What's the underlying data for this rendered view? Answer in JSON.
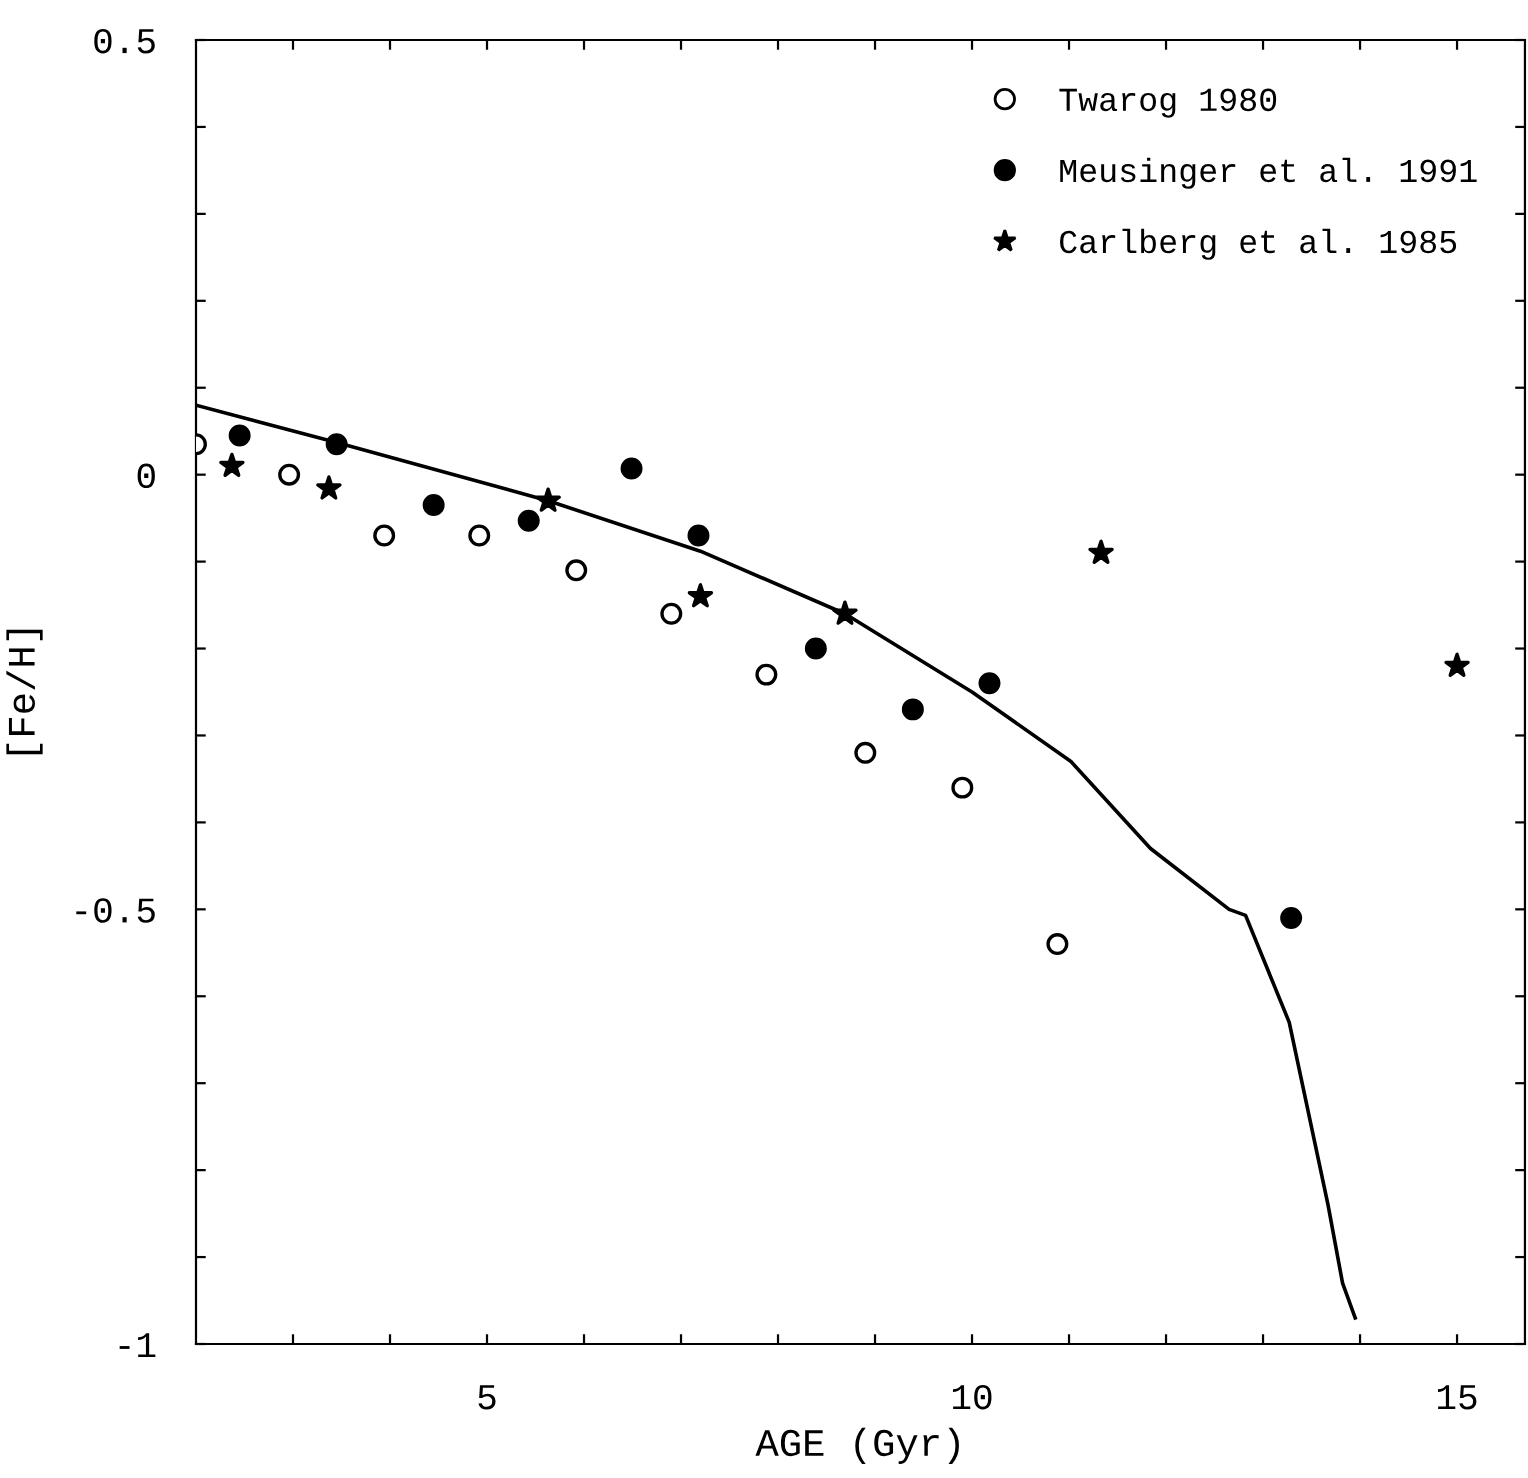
{
  "chart_data": {
    "type": "scatter",
    "xlabel": "AGE (Gyr)",
    "ylabel": "[Fe/H]",
    "xlim": [
      2,
      15.7
    ],
    "ylim": [
      -1,
      0.5
    ],
    "xticks": [
      {
        "value": 3,
        "label": null
      },
      {
        "value": 4,
        "label": null
      },
      5,
      {
        "value": 6,
        "label": null
      },
      {
        "value": 7,
        "label": null
      },
      {
        "value": 8,
        "label": null
      },
      {
        "value": 9,
        "label": null
      },
      10,
      {
        "value": 11,
        "label": null
      },
      {
        "value": 12,
        "label": null
      },
      {
        "value": 13,
        "label": null
      },
      {
        "value": 14,
        "label": null
      },
      15
    ],
    "yticks": [
      -1,
      {
        "value": -0.9,
        "label": null
      },
      {
        "value": -0.8,
        "label": null
      },
      {
        "value": -0.7,
        "label": null
      },
      {
        "value": -0.6,
        "label": null
      },
      -0.5,
      {
        "value": -0.4,
        "label": null
      },
      {
        "value": -0.3,
        "label": null
      },
      {
        "value": -0.2,
        "label": null
      },
      {
        "value": -0.1,
        "label": null
      },
      0,
      {
        "value": 0.1,
        "label": null
      },
      {
        "value": 0.2,
        "label": null
      },
      {
        "value": 0.3,
        "label": null
      },
      {
        "value": 0.4,
        "label": null
      },
      0.5
    ],
    "grid": false,
    "legend": "top right",
    "series": [
      {
        "name": "Twarog 1980",
        "color": "#ffffff",
        "marker": "circle",
        "x": [
          2.0,
          2.96,
          3.94,
          4.92,
          5.92,
          6.9,
          7.88,
          8.9,
          9.9,
          10.88
        ],
        "values": [
          0.035,
          0.0,
          -0.07,
          -0.07,
          -0.11,
          -0.16,
          -0.23,
          -0.32,
          -0.36,
          -0.54
        ]
      },
      {
        "name": "Meusinger et al. 1991",
        "color": "#000000",
        "marker": "circle",
        "x": [
          2.45,
          3.45,
          4.45,
          5.43,
          6.49,
          7.18,
          8.39,
          9.39,
          10.18,
          13.29
        ],
        "values": [
          0.045,
          0.035,
          -0.035,
          -0.053,
          0.007,
          -0.07,
          -0.2,
          -0.27,
          -0.24,
          -0.51
        ]
      },
      {
        "name": "Carlberg et al. 1985",
        "color": "#000000",
        "marker": "star",
        "x": [
          2.37,
          3.37,
          5.63,
          7.2,
          8.69,
          11.33,
          15.0
        ],
        "values": [
          0.01,
          -0.016,
          -0.03,
          -0.14,
          -0.16,
          -0.09,
          -0.22
        ]
      },
      {
        "type": "line",
        "color": "#000000",
        "marker": "none",
        "line_style": "solid",
        "x": [
          2.0,
          3.45,
          5.63,
          7.2,
          8.69,
          10.0,
          11.02,
          11.84,
          12.65,
          12.82,
          13.27,
          13.67,
          13.82,
          13.95
        ],
        "values": [
          0.08,
          0.037,
          -0.03,
          -0.088,
          -0.16,
          -0.25,
          -0.33,
          -0.43,
          -0.5,
          -0.507,
          -0.63,
          -0.84,
          -0.93,
          -0.97
        ]
      }
    ]
  }
}
